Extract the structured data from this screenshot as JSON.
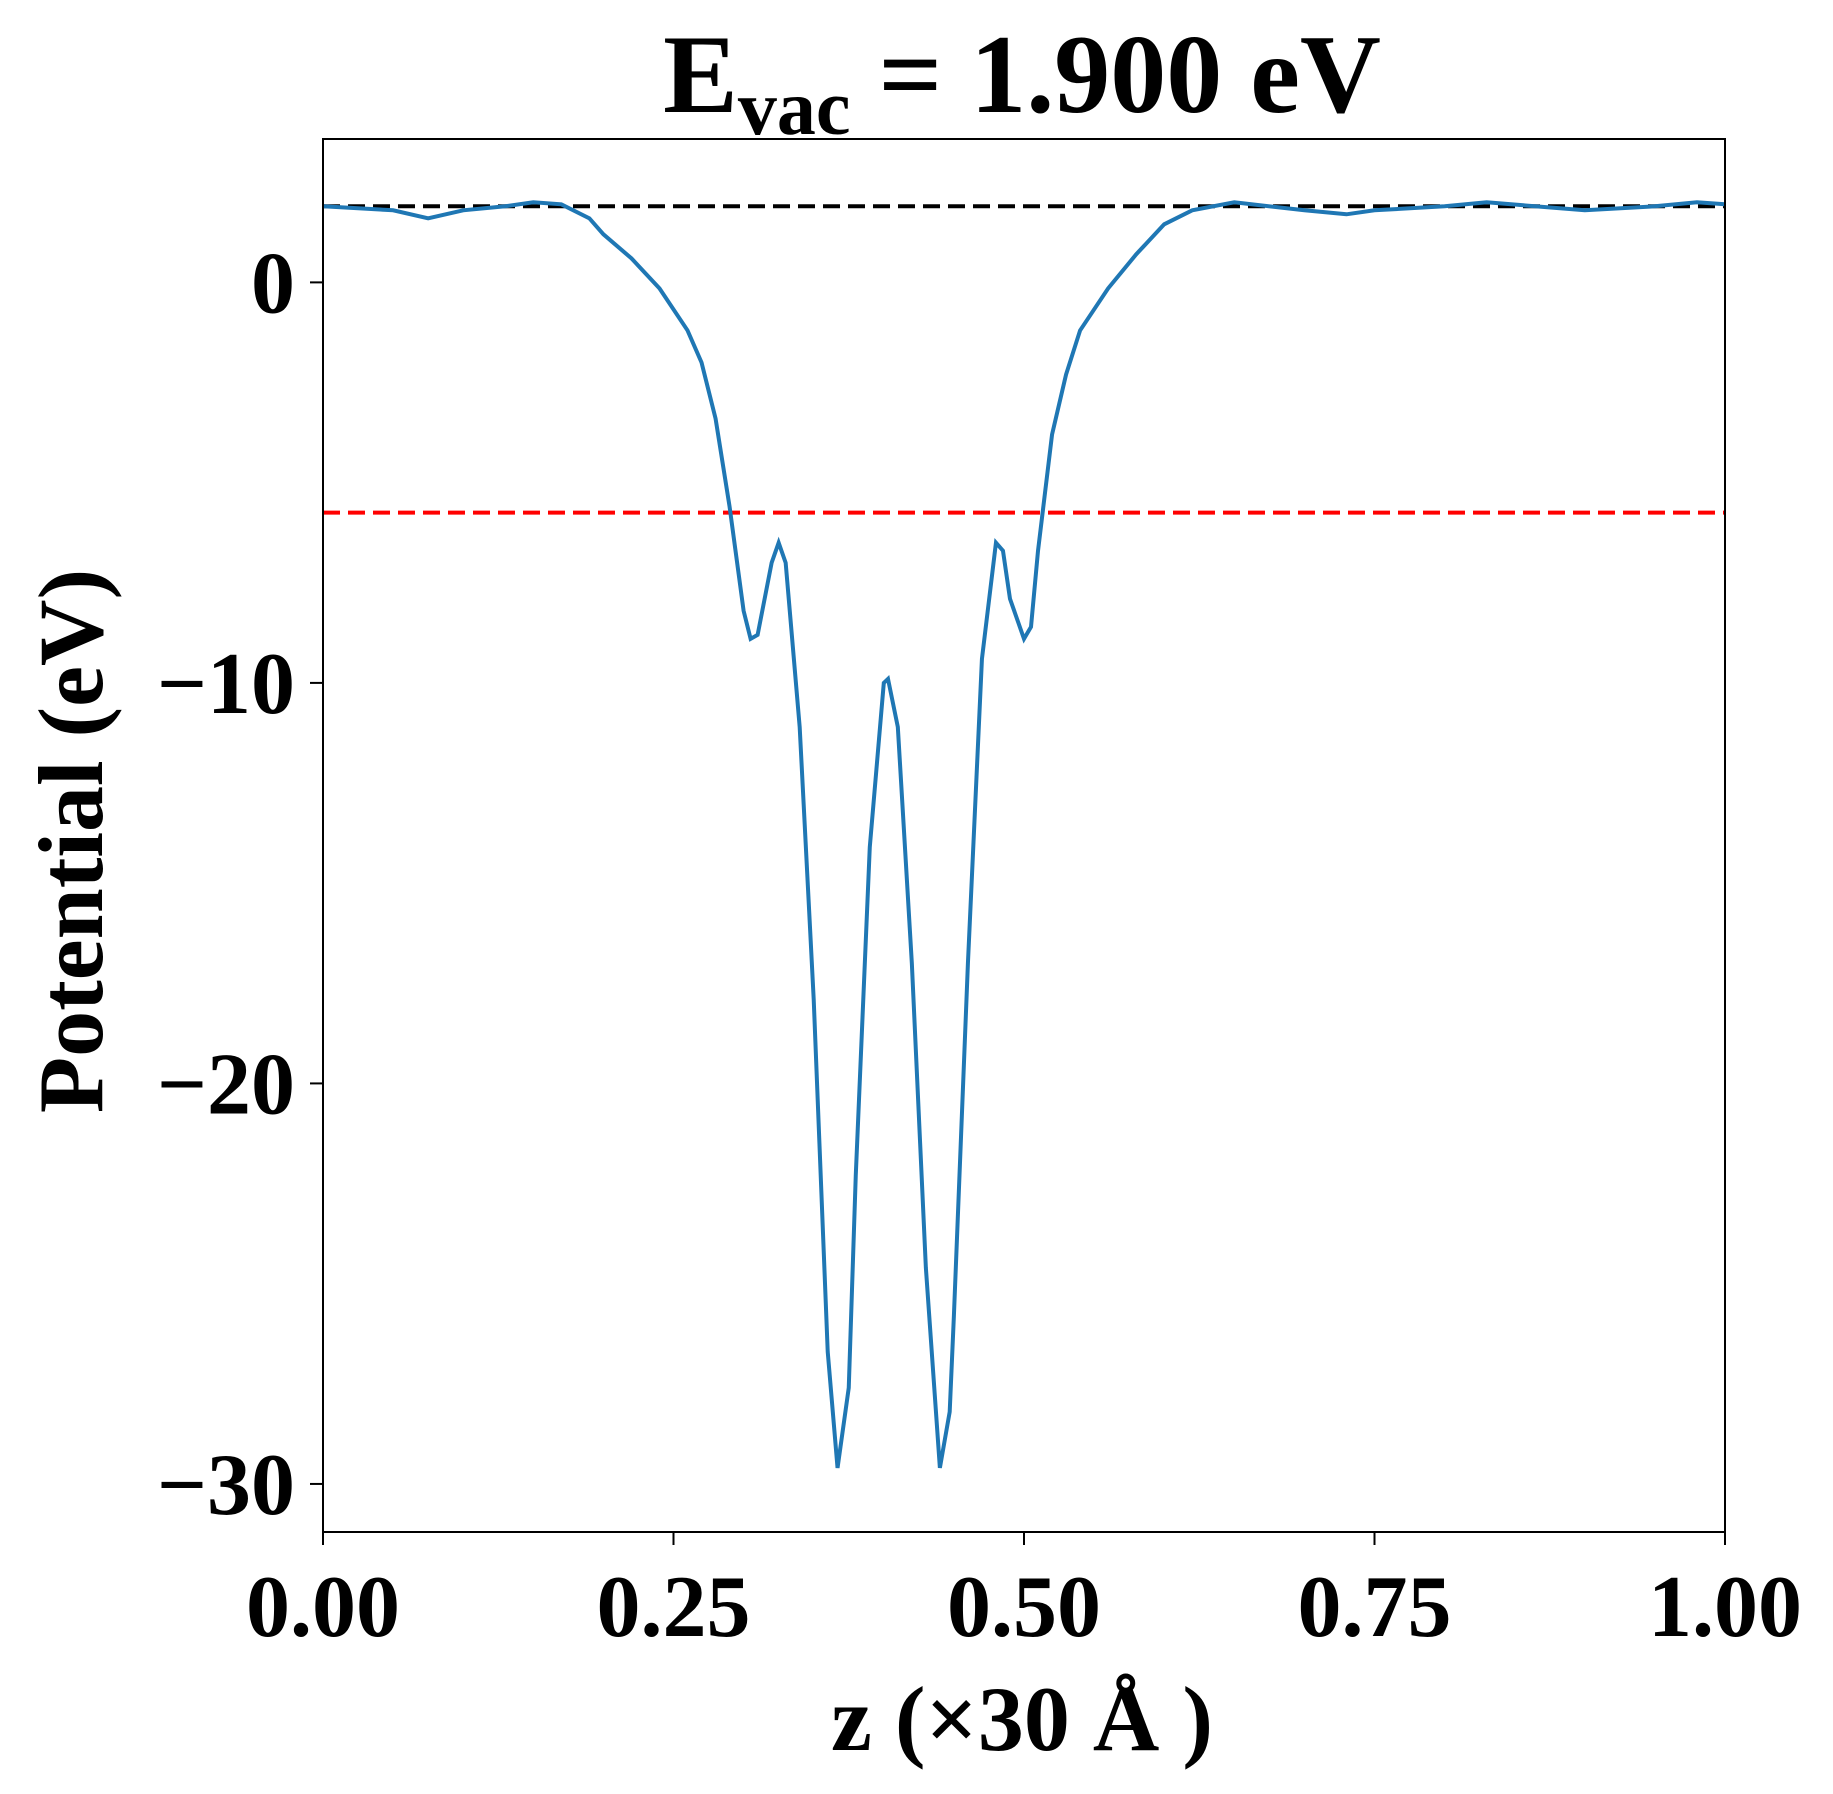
{
  "chart_data": {
    "type": "line",
    "title": {
      "base": "E",
      "sub": "vac",
      "rest": " = 1.900 eV"
    },
    "xlabel": "z (×30 Å )",
    "ylabel": "Potential (eV)",
    "xlim": [
      0,
      1
    ],
    "ylim": [
      -31.2,
      3.58
    ],
    "xticks": [
      {
        "value": 0,
        "label": "0.00"
      },
      {
        "value": 0.25,
        "label": "0.25"
      },
      {
        "value": 0.5,
        "label": "0.50"
      },
      {
        "value": 0.75,
        "label": "0.75"
      },
      {
        "value": 1,
        "label": "1.00"
      }
    ],
    "yticks": [
      0,
      {
        "value": -10,
        "label": "−10"
      },
      {
        "value": -20,
        "label": "−20"
      },
      {
        "value": -30,
        "label": "−30"
      }
    ],
    "hlines": [
      {
        "value": 1.9,
        "color": "#000000"
      },
      {
        "value": -5.75,
        "color": "#ff0000"
      }
    ],
    "series": [
      {
        "color": "#1f77b4",
        "x": [
          0,
          0.05,
          0.075,
          0.1,
          0.13,
          0.15,
          0.17,
          0.19,
          0.2,
          0.22,
          0.24,
          0.26,
          0.27,
          0.28,
          0.29,
          0.3,
          0.305,
          0.31,
          0.32,
          0.325,
          0.33,
          0.34,
          0.35,
          0.36,
          0.367,
          0.375,
          0.38,
          0.39,
          0.4,
          0.403,
          0.41,
          0.42,
          0.43,
          0.44,
          0.447,
          0.45,
          0.46,
          0.47,
          0.48,
          0.485,
          0.49,
          0.5,
          0.505,
          0.51,
          0.52,
          0.53,
          0.54,
          0.56,
          0.58,
          0.6,
          0.62,
          0.65,
          0.7,
          0.73,
          0.75,
          0.8,
          0.83,
          0.9,
          0.95,
          0.98,
          1.0
        ],
        "values": [
          1.9,
          1.8,
          1.6,
          1.8,
          1.9,
          2.0,
          1.95,
          1.6,
          1.2,
          0.6,
          -0.15,
          -1.2,
          -2,
          -3.4,
          -5.6,
          -8.2,
          -8.9,
          -8.8,
          -7.0,
          -6.5,
          -7.0,
          -11.1,
          -17.9,
          -26.7,
          -29.6,
          -27.6,
          -22.3,
          -14.1,
          -10,
          -9.9,
          -11.1,
          -17,
          -24.6,
          -29.6,
          -28.2,
          -25.8,
          -17,
          -9.4,
          -6.5,
          -6.7,
          -7.9,
          -8.9,
          -8.6,
          -6.7,
          -3.8,
          -2.3,
          -1.2,
          -0.15,
          0.7,
          1.45,
          1.8,
          2.0,
          1.8,
          1.7,
          1.8,
          1.9,
          2.0,
          1.8,
          1.9,
          2.0,
          1.95
        ]
      }
    ]
  }
}
